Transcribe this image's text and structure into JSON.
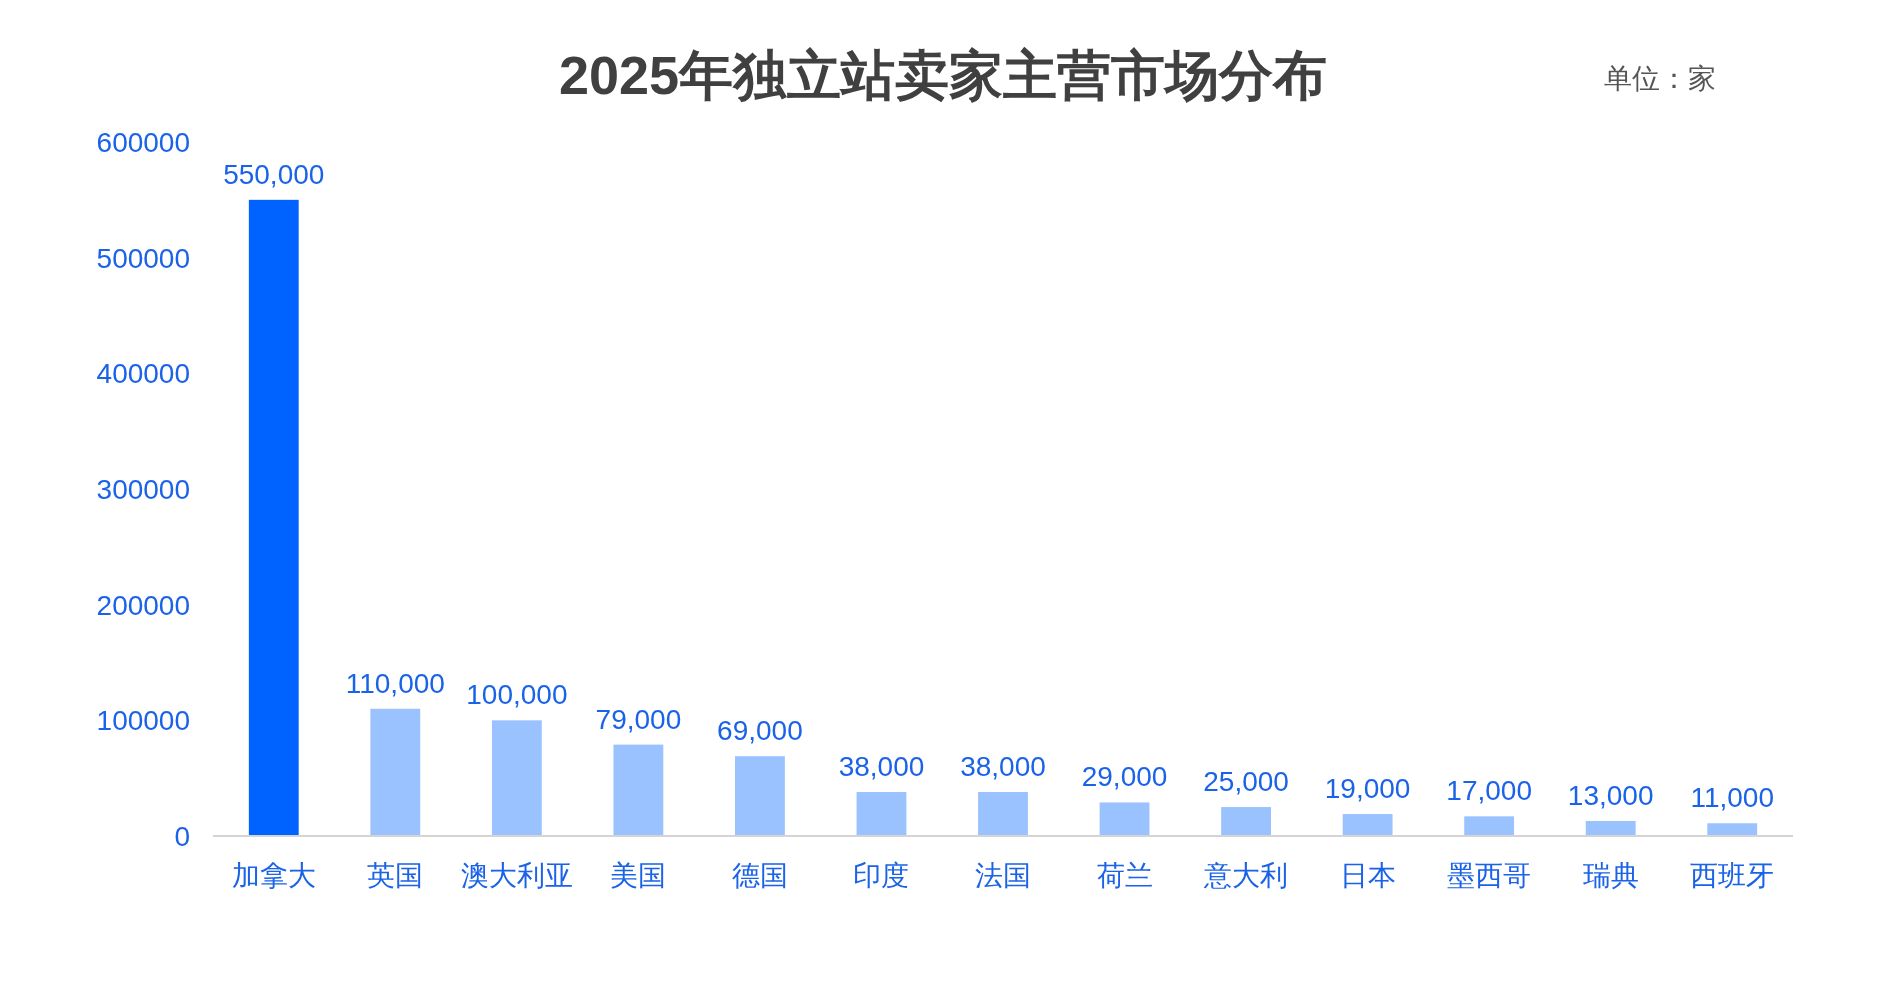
{
  "chart_data": {
    "type": "bar",
    "title": "2025年独立站卖家主营市场分布",
    "annotations": [
      "单位：家"
    ],
    "categories": [
      "加拿大",
      "英国",
      "澳大利亚",
      "美国",
      "德国",
      "印度",
      "法国",
      "荷兰",
      "意大利",
      "日本",
      "墨西哥",
      "瑞典",
      "西班牙"
    ],
    "values": [
      550000,
      110000,
      100000,
      79000,
      69000,
      38000,
      38000,
      29000,
      25000,
      19000,
      17000,
      13000,
      11000
    ],
    "colors": [
      "#0062ff",
      "#99c2ff",
      "#99c2ff",
      "#99c2ff",
      "#99c2ff",
      "#99c2ff",
      "#99c2ff",
      "#99c2ff",
      "#99c2ff",
      "#99c2ff",
      "#99c2ff",
      "#99c2ff",
      "#99c2ff"
    ],
    "value_labels": [
      "550,000",
      "110,000",
      "100,000",
      "79,000",
      "69,000",
      "38,000",
      "38,000",
      "29,000",
      "25,000",
      "19,000",
      "17,000",
      "13,000",
      "11,000"
    ],
    "ylim": [
      0,
      600000
    ],
    "yticks": [
      0,
      100000,
      200000,
      300000,
      400000,
      500000,
      600000
    ]
  }
}
